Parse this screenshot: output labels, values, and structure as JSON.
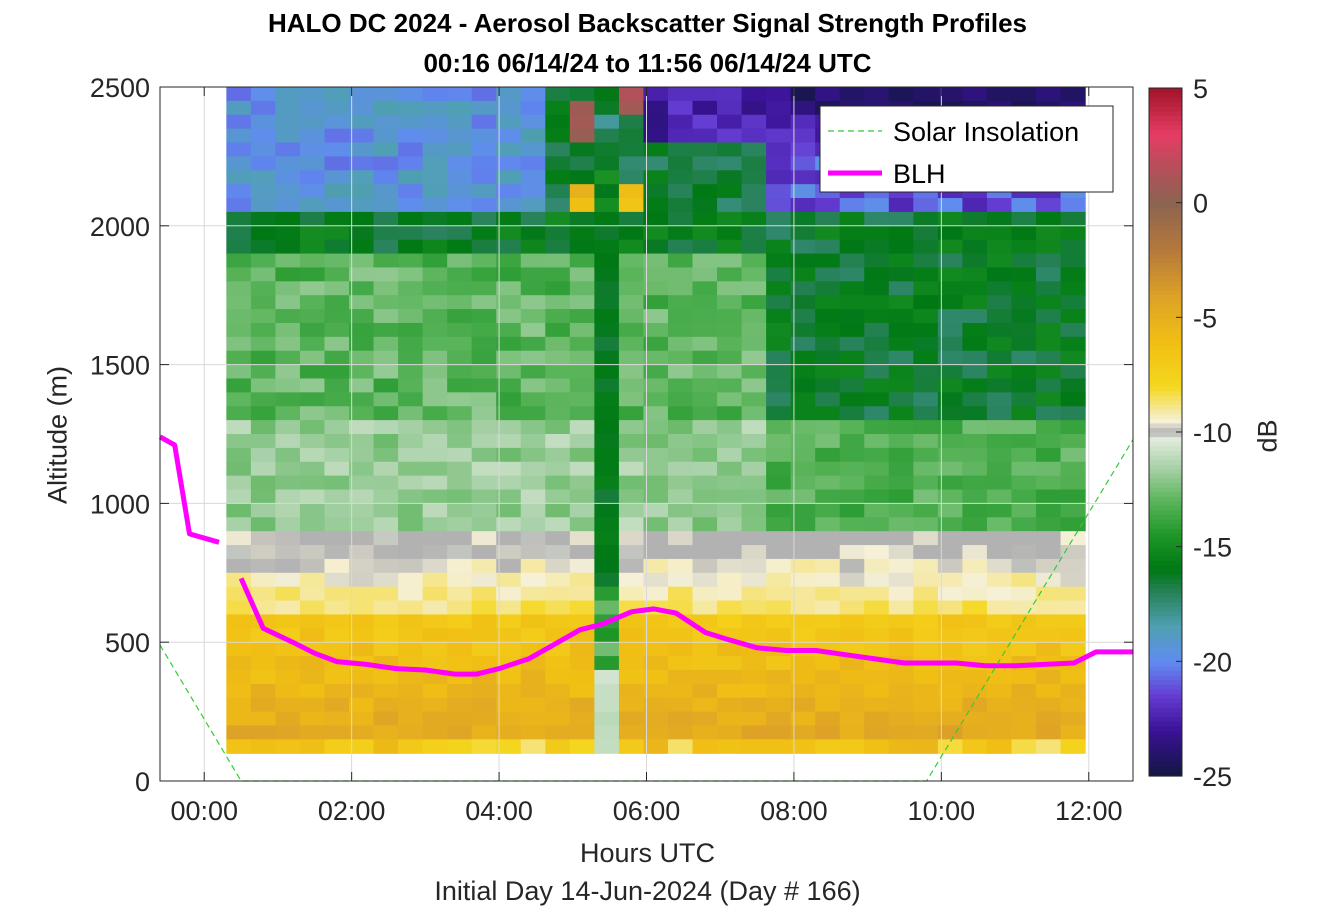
{
  "title_line1": "HALO DC 2024 - Aerosol Backscatter Signal Strength Profiles",
  "title_line2": "00:16 06/14/24 to 11:56 06/14/24  UTC",
  "xlabel": "Hours UTC",
  "subtitle": "Initial Day 14-Jun-2024 (Day # 166)",
  "ylabel": "Altitude (m)",
  "colorbar_label": "dB",
  "legend": {
    "solar": "Solar Insolation",
    "blh": "BLH"
  },
  "colors": {
    "blh": "#ff00ff",
    "solar": "#33cc33"
  },
  "chart_data": {
    "type": "heatmap",
    "xlim": [
      -0.6,
      12.6
    ],
    "ylim": [
      0,
      2500
    ],
    "xticks": [
      0,
      2,
      4,
      6,
      8,
      10,
      12
    ],
    "xtick_labels": [
      "00:00",
      "02:00",
      "04:00",
      "06:00",
      "08:00",
      "10:00",
      "12:00"
    ],
    "yticks": [
      0,
      500,
      1000,
      1500,
      2000,
      2500
    ],
    "ytick_labels": [
      "0",
      "500",
      "1000",
      "1500",
      "2000",
      "2500"
    ],
    "colorbar": {
      "range": [
        -25,
        5
      ],
      "ticks": [
        -25,
        -20,
        -15,
        -10,
        -5,
        0,
        5
      ],
      "tick_labels": [
        "-25",
        "-20",
        "-15",
        "-10",
        "-5",
        "0",
        "5"
      ]
    },
    "heatmap_extent": {
      "x": [
        0.3,
        11.95
      ],
      "y": [
        100,
        2500
      ]
    },
    "grid": true,
    "legend_position": "top-right",
    "series": [
      {
        "name": "BLH",
        "x": [
          -0.6,
          -0.4,
          -0.2,
          0.2
        ],
        "y": [
          1240,
          1210,
          890,
          860
        ]
      },
      {
        "name": "BLH",
        "x": [
          0.5,
          0.8,
          1.2,
          1.5,
          1.8,
          2.2,
          2.6,
          3.0,
          3.4,
          3.7,
          4.0,
          4.4,
          4.7,
          5.1,
          5.4,
          5.8,
          6.1,
          6.4,
          6.8,
          7.1,
          7.5,
          7.9,
          8.3,
          8.7,
          9.1,
          9.5,
          9.8,
          10.2,
          10.6,
          11.0,
          11.4,
          11.8,
          12.1,
          12.6
        ],
        "y": [
          730,
          550,
          500,
          460,
          430,
          420,
          405,
          400,
          385,
          385,
          405,
          440,
          485,
          545,
          565,
          610,
          620,
          605,
          535,
          510,
          480,
          470,
          470,
          455,
          440,
          425,
          425,
          425,
          415,
          415,
          420,
          425,
          465,
          465
        ]
      },
      {
        "name": "Solar Insolation",
        "x": [
          -0.6,
          0.5,
          9.8,
          12.6
        ],
        "y": [
          490,
          0,
          0,
          1230
        ]
      }
    ]
  }
}
